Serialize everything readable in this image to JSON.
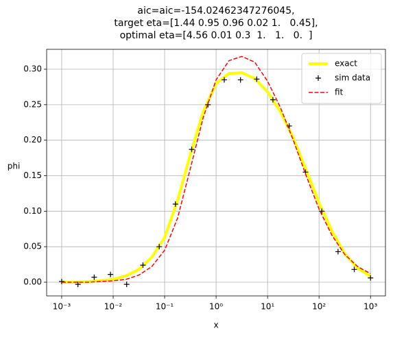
{
  "chart_data": {
    "type": "line",
    "title": [
      "aic=aic=-154.02462347276045,",
      "target eta=[1.44 0.95 0.96 0.02 1.   0.45],",
      "optimal eta=[4.56 0.01 0.3  1.   1.   0.  ]"
    ],
    "x_label": "x",
    "y_label": "phi",
    "x_scale": "log",
    "grid": true,
    "legend": "upper right",
    "xlim": [
      0.00051,
      1950
    ],
    "ylim": [
      -0.0193,
      0.328
    ],
    "xticks": [
      {
        "value": 0.001,
        "label": "10⁻³"
      },
      {
        "value": 0.01,
        "label": "10⁻²"
      },
      {
        "value": 0.1,
        "label": "10⁻¹"
      },
      {
        "value": 1,
        "label": "10⁰"
      },
      {
        "value": 10,
        "label": "10¹"
      },
      {
        "value": 100,
        "label": "10²"
      },
      {
        "value": 1000,
        "label": "10³"
      }
    ],
    "yticks": [
      {
        "value": 0,
        "label": "0.00"
      },
      {
        "value": 0.05,
        "label": "0.05"
      },
      {
        "value": 0.1,
        "label": "0.10"
      },
      {
        "value": 0.15,
        "label": "0.15"
      },
      {
        "value": 0.2,
        "label": "0.20"
      },
      {
        "value": 0.25,
        "label": "0.25"
      },
      {
        "value": 0.3,
        "label": "0.30"
      }
    ],
    "series": [
      {
        "name": "exact",
        "color": "#ffff00",
        "style": "line",
        "width": 4,
        "x": [
          0.001,
          0.00178,
          0.00316,
          0.00562,
          0.01,
          0.0178,
          0.0316,
          0.0562,
          0.1,
          0.178,
          0.316,
          0.562,
          1,
          1.78,
          3.16,
          5.62,
          10,
          17.8,
          31.6,
          56.2,
          100,
          178,
          316,
          562,
          1000
        ],
        "values": [
          0.0,
          0.0,
          0.001,
          0.002,
          0.004,
          0.009,
          0.018,
          0.035,
          0.063,
          0.115,
          0.18,
          0.24,
          0.28,
          0.294,
          0.295,
          0.287,
          0.268,
          0.24,
          0.203,
          0.158,
          0.112,
          0.072,
          0.04,
          0.02,
          0.008
        ]
      },
      {
        "name": "sim data",
        "color": "#000000",
        "style": "marker",
        "x": [
          0.001,
          0.00207,
          0.00428,
          0.00886,
          0.0183,
          0.0379,
          0.0785,
          0.162,
          0.336,
          0.695,
          1.44,
          2.98,
          6.16,
          12.7,
          26.4,
          54.6,
          113,
          234,
          483,
          1000
        ],
        "values": [
          0.001,
          -0.003,
          0.007,
          0.011,
          -0.003,
          0.024,
          0.05,
          0.11,
          0.187,
          0.25,
          0.285,
          0.285,
          0.286,
          0.257,
          0.22,
          0.155,
          0.1,
          0.043,
          0.018,
          0.006
        ]
      },
      {
        "name": "fit",
        "color": "#ff0000",
        "style": "dashed",
        "width": 1.5,
        "x": [
          0.001,
          0.00178,
          0.00316,
          0.00562,
          0.01,
          0.0178,
          0.0316,
          0.0562,
          0.1,
          0.178,
          0.316,
          0.562,
          1,
          1.78,
          3.16,
          5.62,
          10,
          17.8,
          31.6,
          56.2,
          100,
          178,
          316,
          562,
          1000
        ],
        "values": [
          0.0,
          0.0,
          0.0,
          0.001,
          0.002,
          0.004,
          0.01,
          0.022,
          0.045,
          0.09,
          0.16,
          0.232,
          0.285,
          0.312,
          0.318,
          0.31,
          0.283,
          0.246,
          0.2,
          0.15,
          0.103,
          0.066,
          0.039,
          0.022,
          0.012
        ]
      }
    ]
  }
}
